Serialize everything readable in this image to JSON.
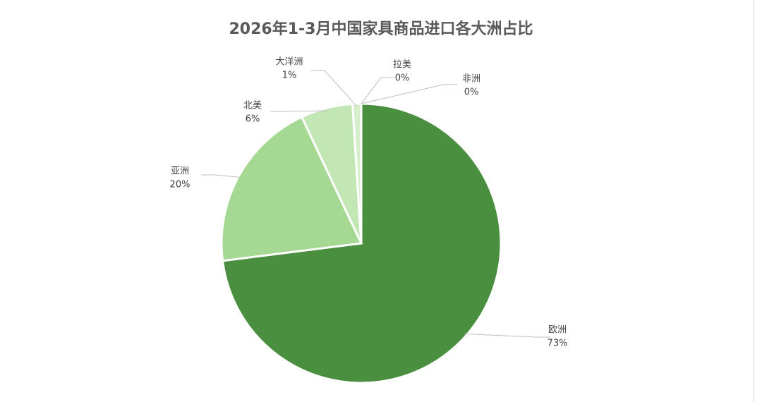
{
  "chart_data": {
    "type": "pie",
    "title": "2026年1-3月中国家具商品进口各大洲占比",
    "categories": [
      "欧洲",
      "亚洲",
      "北美",
      "大洋洲",
      "拉美",
      "非洲"
    ],
    "values": [
      73,
      20,
      6,
      1,
      0,
      0
    ],
    "value_labels": [
      "73%",
      "20%",
      "6%",
      "1%",
      "0%",
      "0%"
    ],
    "colors": [
      "#4a8f3f",
      "#a5d893",
      "#c3e6b5",
      "#d6efcb",
      "#e3f4db",
      "#eef8e9"
    ]
  }
}
